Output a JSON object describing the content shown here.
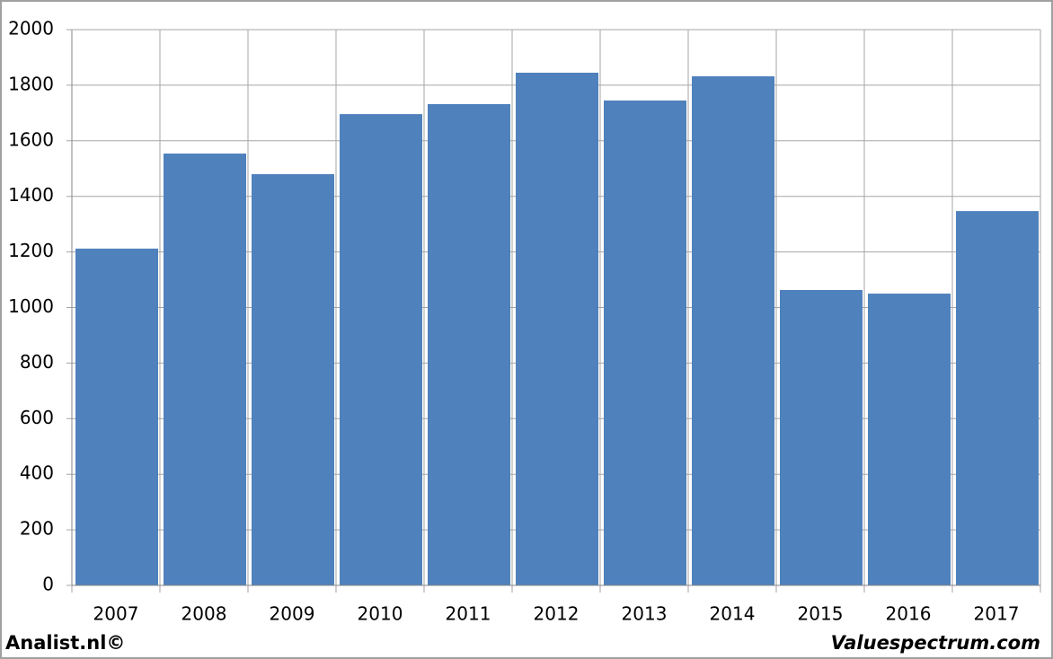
{
  "chart_data": {
    "type": "bar",
    "categories": [
      "2007",
      "2008",
      "2009",
      "2010",
      "2011",
      "2012",
      "2013",
      "2014",
      "2015",
      "2016",
      "2017"
    ],
    "values": [
      1212,
      1554,
      1480,
      1696,
      1732,
      1845,
      1745,
      1832,
      1063,
      1050,
      1347
    ],
    "color": "#4f81bd",
    "ylim": [
      0,
      2000
    ],
    "yticks": [
      0,
      200,
      400,
      600,
      800,
      1000,
      1200,
      1400,
      1600,
      1800,
      2000
    ],
    "grid": true
  },
  "footer": {
    "left": "Analist.nl©",
    "right": "Valuespectrum.com"
  }
}
